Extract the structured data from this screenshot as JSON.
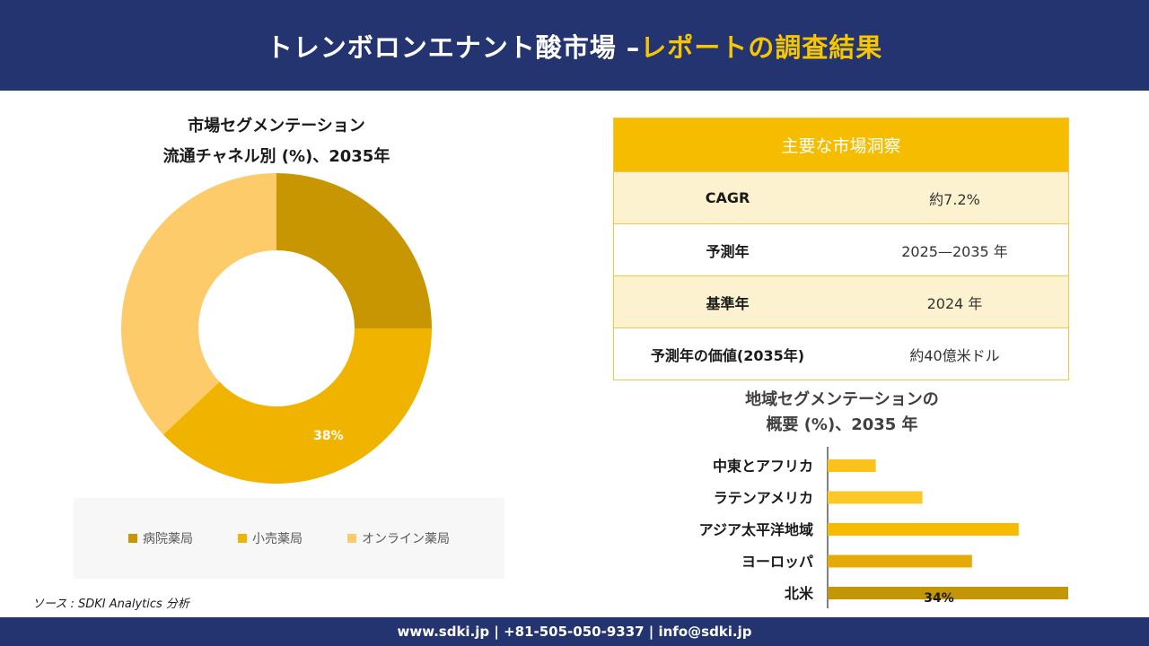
{
  "header": {
    "title_main": "トレンボロンエナント酸市場 –",
    "title_accent": "レポートの調査結果"
  },
  "donut": {
    "title_line1": "市場セグメンテーション",
    "title_line2": "流通チャネル別 (%)、2035年"
  },
  "insights": {
    "header": "主要な市場洞察",
    "rows": [
      {
        "label": "CAGR",
        "value": "約7.2%"
      },
      {
        "label": "予測年",
        "value": "2025—2035 年"
      },
      {
        "label": "基準年",
        "value": "2024 年"
      },
      {
        "label": "予測年の価値(2035年)",
        "value": "約40億米ドル"
      }
    ]
  },
  "bars": {
    "title_line1": "地域セグメンテーションの",
    "title_line2": "概要 (%)、2035 年"
  },
  "source": "ソース : SDKI Analytics 分析",
  "footer": "www.sdki.jp | +81-505-050-9337 | info@sdki.jp",
  "chart_data": [
    {
      "type": "pie",
      "title": "市場セグメンテーション 流通チャネル別 (%)、2035年",
      "categories": [
        "病院薬局",
        "小売薬局",
        "オンライン薬局"
      ],
      "values": [
        25,
        38,
        37
      ],
      "data_labels": [
        "",
        "38%",
        ""
      ],
      "colors": [
        "#c89600",
        "#f0b400",
        "#fecb6a"
      ],
      "legend_position": "bottom",
      "donut": true
    },
    {
      "type": "bar",
      "orientation": "horizontal",
      "title": "地域セグメンテーションの 概要 (%)、2035 年",
      "categories": [
        "中東とアフリカ",
        "ラテンアメリカ",
        "アジア太平洋地域",
        "ヨーロッパ",
        "北米"
      ],
      "values": [
        6.8,
        13.4,
        27,
        20.4,
        34
      ],
      "data_labels": [
        "",
        "",
        "",
        "",
        "34%"
      ],
      "colors": [
        "#fbc21a",
        "#fbc827",
        "#f6bb00",
        "#e3aa08",
        "#c59508"
      ],
      "xlim": [
        0,
        34
      ],
      "grid": false
    }
  ]
}
